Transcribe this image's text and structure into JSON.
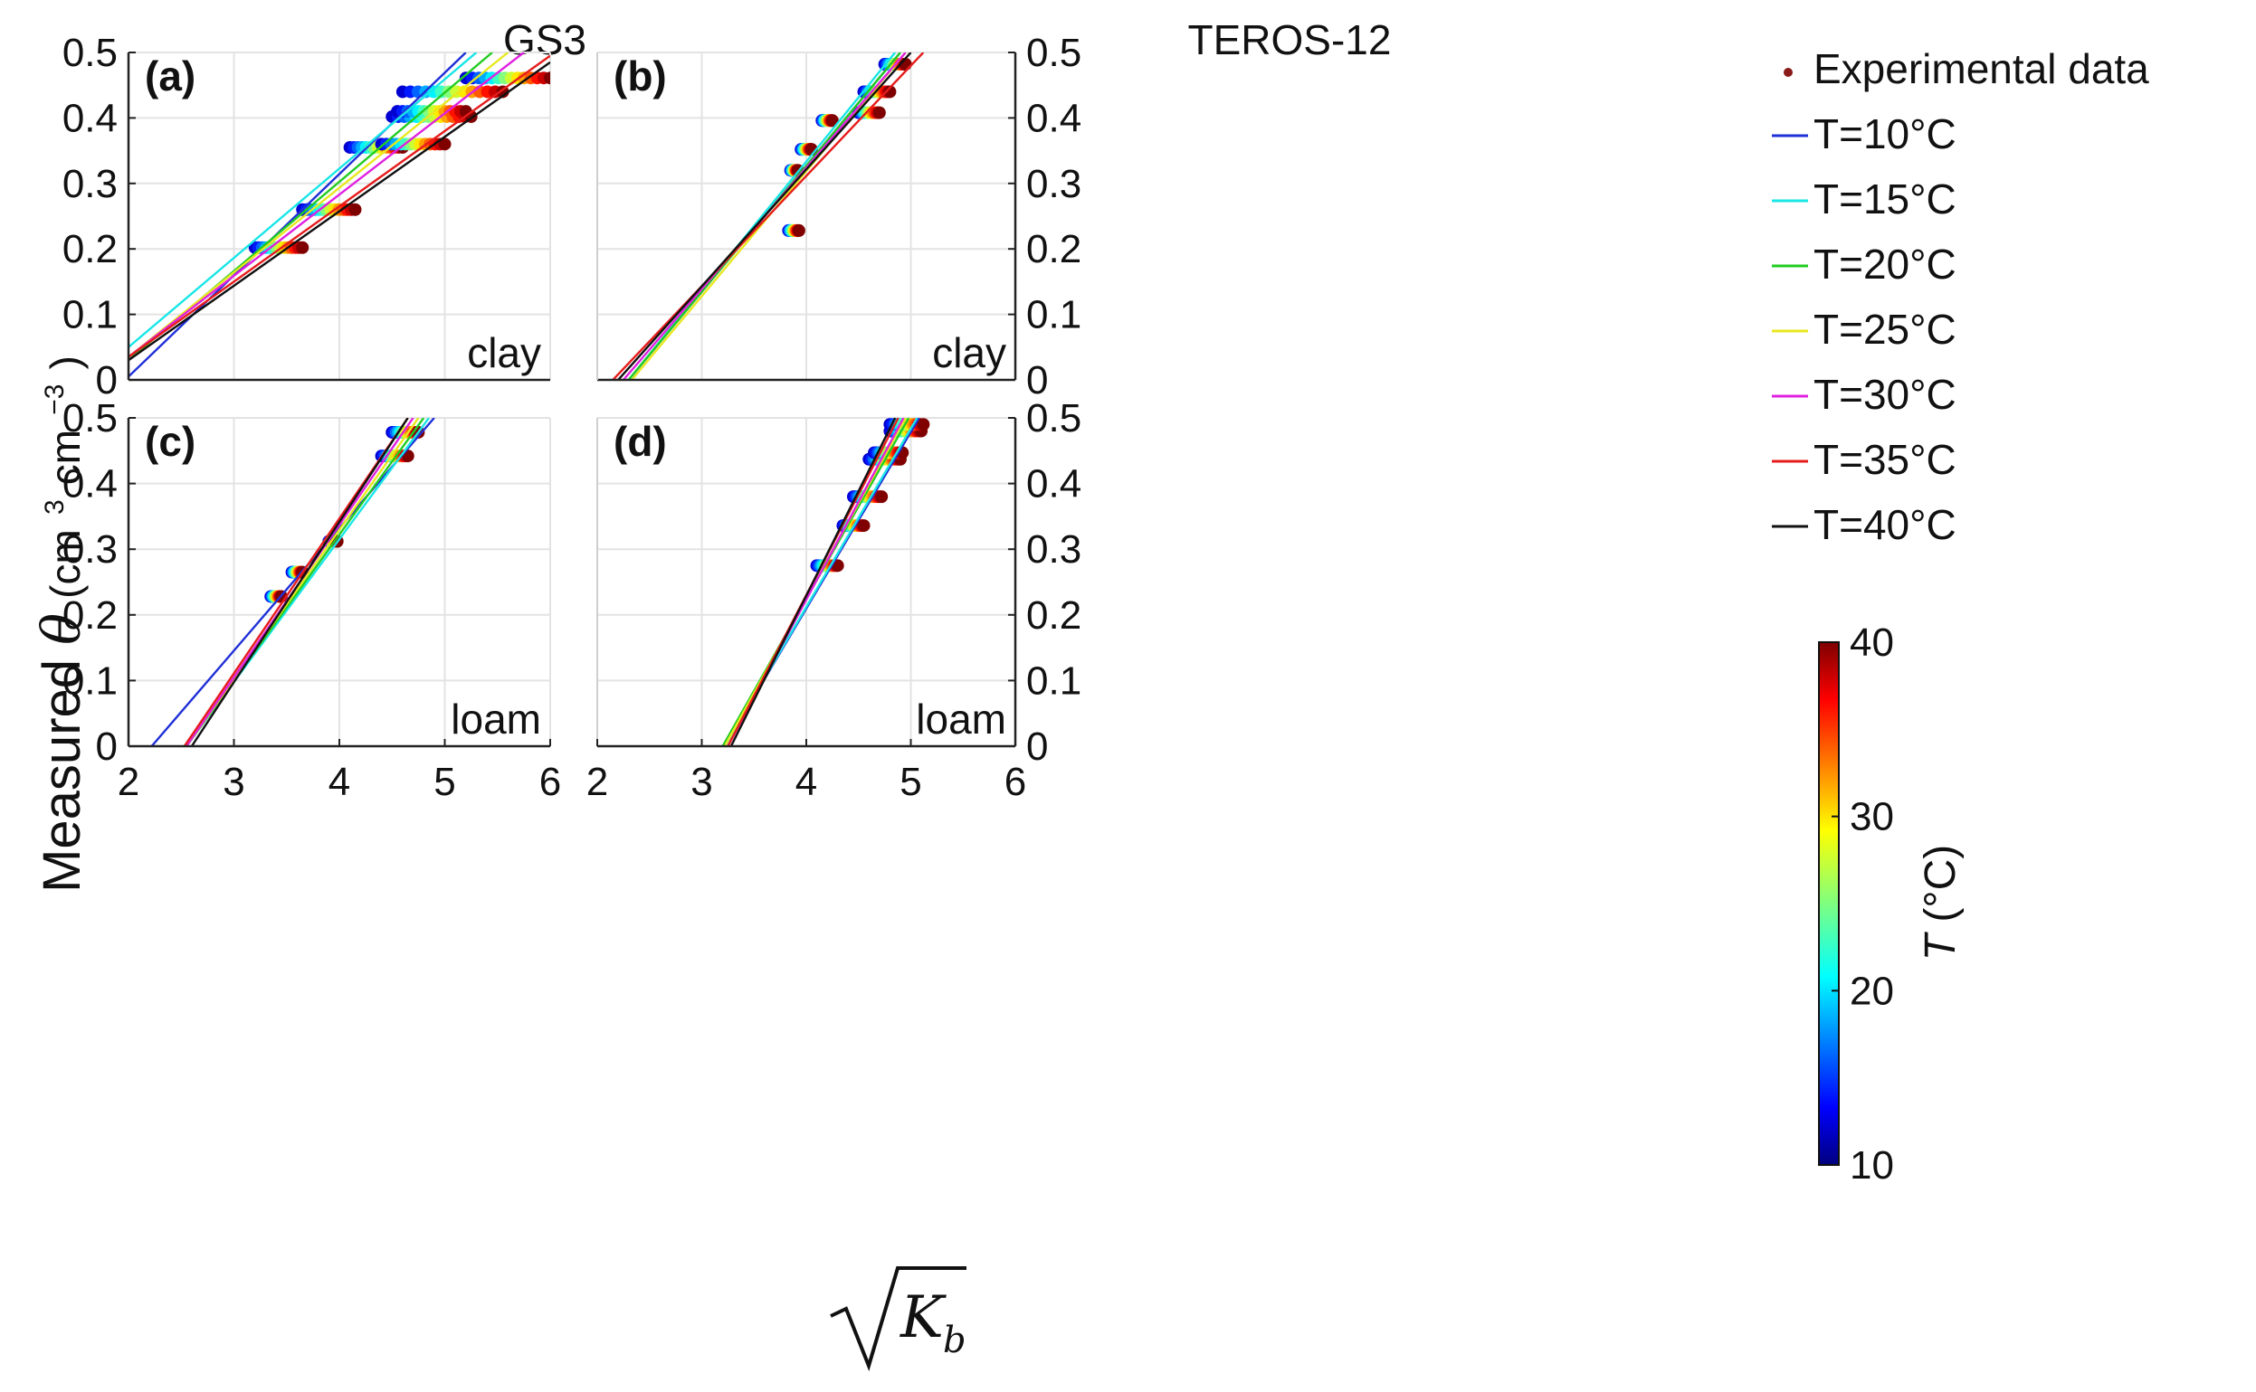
{
  "figure": {
    "col_titles": [
      "GS3",
      "TEROS-12"
    ],
    "ylabel": {
      "text": "Measured",
      "symbol": "θ",
      "unit_open": "(cm",
      "sup1": "3",
      "unit_mid": " cm",
      "sup2": "−3",
      "unit_close": ")"
    },
    "xlabel": {
      "base": "K",
      "sub": "b"
    },
    "colorbar": {
      "label": "T",
      "unit": "(°C)",
      "ticks": [
        "10",
        "20",
        "30",
        "40"
      ],
      "min": 10,
      "max": 40
    }
  },
  "legend": {
    "items": [
      {
        "label": "Experimental data",
        "kind": "dot",
        "color": "#8b1a1a"
      },
      {
        "label": "T=10°C",
        "kind": "line",
        "color": "#1f2fd8"
      },
      {
        "label": "T=15°C",
        "kind": "line",
        "color": "#19e6e6"
      },
      {
        "label": "T=20°C",
        "kind": "line",
        "color": "#22cc22"
      },
      {
        "label": "T=25°C",
        "kind": "line",
        "color": "#e8e820"
      },
      {
        "label": "T=30°C",
        "kind": "line",
        "color": "#e020e0"
      },
      {
        "label": "T=35°C",
        "kind": "line",
        "color": "#e61c1c"
      },
      {
        "label": "T=40°C",
        "kind": "line",
        "color": "#111111"
      }
    ]
  },
  "chart_data": [
    {
      "type": "scatter",
      "panel": "(a)",
      "sensor": "GS3",
      "soil": "clay",
      "xlim": [
        2,
        6
      ],
      "ylim": [
        0,
        0.5
      ],
      "xticks": [
        "2",
        "3",
        "4",
        "5",
        "6"
      ],
      "yticks": [
        "0",
        "0.1",
        "0.2",
        "0.3",
        "0.4",
        "0.5"
      ],
      "fit_lines": [
        {
          "T": 10,
          "color": "#1f2fd8",
          "x": [
            2.0,
            5.2
          ],
          "y": [
            0.005,
            0.5
          ]
        },
        {
          "T": 15,
          "color": "#19e6e6",
          "x": [
            2.0,
            5.3
          ],
          "y": [
            0.05,
            0.5
          ]
        },
        {
          "T": 20,
          "color": "#22cc22",
          "x": [
            2.0,
            5.45
          ],
          "y": [
            0.03,
            0.5
          ]
        },
        {
          "T": 25,
          "color": "#e8e820",
          "x": [
            2.0,
            5.6
          ],
          "y": [
            0.035,
            0.5
          ]
        },
        {
          "T": 30,
          "color": "#e020e0",
          "x": [
            2.0,
            5.75
          ],
          "y": [
            0.035,
            0.5
          ]
        },
        {
          "T": 35,
          "color": "#e61c1c",
          "x": [
            2.0,
            6.0
          ],
          "y": [
            0.035,
            0.495
          ]
        },
        {
          "T": 40,
          "color": "#111111",
          "x": [
            2.0,
            6.0
          ],
          "y": [
            0.03,
            0.485
          ]
        }
      ],
      "data_series": [
        {
          "y": 0.202,
          "x_start": 3.2,
          "x_end": 3.65
        },
        {
          "y": 0.26,
          "x_start": 3.65,
          "x_end": 4.15
        },
        {
          "y": 0.355,
          "x_start": 4.1,
          "x_end": 4.6
        },
        {
          "y": 0.36,
          "x_start": 4.4,
          "x_end": 5.0
        },
        {
          "y": 0.402,
          "x_start": 4.5,
          "x_end": 5.25
        },
        {
          "y": 0.41,
          "x_start": 4.55,
          "x_end": 5.2
        },
        {
          "y": 0.44,
          "x_start": 4.6,
          "x_end": 5.55
        },
        {
          "y": 0.461,
          "x_start": 5.2,
          "x_end": 6.0
        }
      ]
    },
    {
      "type": "scatter",
      "panel": "(b)",
      "sensor": "TEROS-12",
      "soil": "clay",
      "xlim": [
        2,
        6
      ],
      "ylim": [
        0,
        0.5
      ],
      "xticks": [
        "2",
        "3",
        "4",
        "5",
        "6"
      ],
      "yticks": [
        "0",
        "0.1",
        "0.2",
        "0.3",
        "0.4",
        "0.5"
      ],
      "fit_lines": [
        {
          "T": 10,
          "color": "#1f2fd8",
          "x": [
            2.3,
            4.9
          ],
          "y": [
            0.0,
            0.5
          ]
        },
        {
          "T": 15,
          "color": "#19e6e6",
          "x": [
            2.3,
            4.85
          ],
          "y": [
            0.0,
            0.5
          ]
        },
        {
          "T": 20,
          "color": "#22cc22",
          "x": [
            2.3,
            4.9
          ],
          "y": [
            0.0,
            0.5
          ]
        },
        {
          "T": 25,
          "color": "#e8e820",
          "x": [
            2.33,
            4.95
          ],
          "y": [
            0.0,
            0.5
          ]
        },
        {
          "T": 30,
          "color": "#e020e0",
          "x": [
            2.25,
            4.95
          ],
          "y": [
            0.0,
            0.5
          ]
        },
        {
          "T": 35,
          "color": "#e61c1c",
          "x": [
            2.15,
            5.12
          ],
          "y": [
            0.0,
            0.5
          ]
        },
        {
          "T": 40,
          "color": "#111111",
          "x": [
            2.2,
            5.0
          ],
          "y": [
            0.0,
            0.5
          ]
        }
      ],
      "data_series": [
        {
          "y": 0.228,
          "x_start": 3.83,
          "x_end": 3.93
        },
        {
          "y": 0.32,
          "x_start": 3.85,
          "x_end": 3.92
        },
        {
          "y": 0.352,
          "x_start": 3.95,
          "x_end": 4.05
        },
        {
          "y": 0.396,
          "x_start": 4.15,
          "x_end": 4.25
        },
        {
          "y": 0.408,
          "x_start": 4.5,
          "x_end": 4.7
        },
        {
          "y": 0.44,
          "x_start": 4.55,
          "x_end": 4.8
        },
        {
          "y": 0.482,
          "x_start": 4.75,
          "x_end": 4.95
        }
      ]
    },
    {
      "type": "scatter",
      "panel": "(c)",
      "sensor": "GS3",
      "soil": "loam",
      "xlim": [
        2,
        6
      ],
      "ylim": [
        0,
        0.5
      ],
      "xticks": [
        "2",
        "3",
        "4",
        "5",
        "6"
      ],
      "yticks": [
        "0",
        "0.1",
        "0.2",
        "0.3",
        "0.4",
        "0.5"
      ],
      "fit_lines": [
        {
          "T": 10,
          "color": "#1f2fd8",
          "x": [
            2.22,
            4.9
          ],
          "y": [
            0.0,
            0.5
          ]
        },
        {
          "T": 15,
          "color": "#19e6e6",
          "x": [
            2.55,
            4.85
          ],
          "y": [
            0.0,
            0.5
          ]
        },
        {
          "T": 20,
          "color": "#22cc22",
          "x": [
            2.55,
            4.8
          ],
          "y": [
            0.0,
            0.5
          ]
        },
        {
          "T": 25,
          "color": "#e8e820",
          "x": [
            2.55,
            4.75
          ],
          "y": [
            0.0,
            0.5
          ]
        },
        {
          "T": 30,
          "color": "#e020e0",
          "x": [
            2.55,
            4.7
          ],
          "y": [
            0.0,
            0.5
          ]
        },
        {
          "T": 35,
          "color": "#e61c1c",
          "x": [
            2.53,
            4.65
          ],
          "y": [
            0.0,
            0.5
          ]
        },
        {
          "T": 40,
          "color": "#111111",
          "x": [
            2.6,
            4.65
          ],
          "y": [
            0.0,
            0.5
          ]
        }
      ],
      "data_series": [
        {
          "y": 0.228,
          "x_start": 3.35,
          "x_end": 3.45
        },
        {
          "y": 0.265,
          "x_start": 3.55,
          "x_end": 3.65
        },
        {
          "y": 0.312,
          "x_start": 3.9,
          "x_end": 3.98
        },
        {
          "y": 0.442,
          "x_start": 4.4,
          "x_end": 4.65
        },
        {
          "y": 0.478,
          "x_start": 4.5,
          "x_end": 4.75
        }
      ]
    },
    {
      "type": "scatter",
      "panel": "(d)",
      "sensor": "TEROS-12",
      "soil": "loam",
      "xlim": [
        2,
        6
      ],
      "ylim": [
        0,
        0.5
      ],
      "xticks": [
        "2",
        "3",
        "4",
        "5",
        "6"
      ],
      "yticks": [
        "0",
        "0.1",
        "0.2",
        "0.3",
        "0.4",
        "0.5"
      ],
      "fit_lines": [
        {
          "T": 10,
          "color": "#1f2fd8",
          "x": [
            3.22,
            5.08
          ],
          "y": [
            0.0,
            0.5
          ]
        },
        {
          "T": 15,
          "color": "#19e6e6",
          "x": [
            3.22,
            5.06
          ],
          "y": [
            0.0,
            0.5
          ]
        },
        {
          "T": 20,
          "color": "#22cc22",
          "x": [
            3.2,
            4.98
          ],
          "y": [
            0.0,
            0.5
          ]
        },
        {
          "T": 25,
          "color": "#e8e820",
          "x": [
            3.22,
            4.95
          ],
          "y": [
            0.0,
            0.5
          ]
        },
        {
          "T": 30,
          "color": "#e020e0",
          "x": [
            3.25,
            4.93
          ],
          "y": [
            0.0,
            0.5
          ]
        },
        {
          "T": 35,
          "color": "#e61c1c",
          "x": [
            3.25,
            4.88
          ],
          "y": [
            0.0,
            0.5
          ]
        },
        {
          "T": 40,
          "color": "#111111",
          "x": [
            3.28,
            4.85
          ],
          "y": [
            0.0,
            0.5
          ]
        }
      ],
      "data_series": [
        {
          "y": 0.275,
          "x_start": 4.1,
          "x_end": 4.3
        },
        {
          "y": 0.336,
          "x_start": 4.35,
          "x_end": 4.55
        },
        {
          "y": 0.38,
          "x_start": 4.45,
          "x_end": 4.72
        },
        {
          "y": 0.437,
          "x_start": 4.6,
          "x_end": 4.9
        },
        {
          "y": 0.447,
          "x_start": 4.65,
          "x_end": 4.92
        },
        {
          "y": 0.48,
          "x_start": 4.8,
          "x_end": 5.1
        },
        {
          "y": 0.49,
          "x_start": 4.8,
          "x_end": 5.12
        }
      ]
    }
  ]
}
